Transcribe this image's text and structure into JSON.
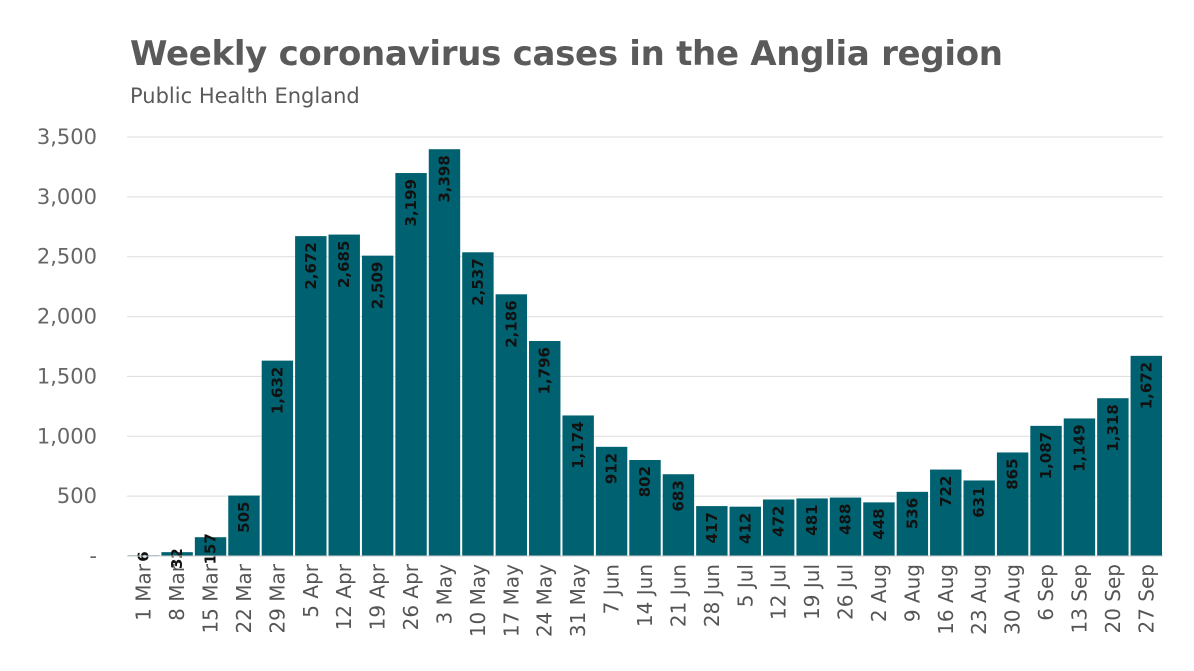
{
  "header": {
    "title": "Weekly coronavirus cases in the Anglia region",
    "subtitle": "Public Health England"
  },
  "chart_data": {
    "type": "bar",
    "title": "Weekly coronavirus cases in the Anglia region",
    "subtitle": "Public Health England",
    "xlabel": "",
    "ylabel": "",
    "ylim": [
      0,
      3500
    ],
    "yticks": [
      0,
      500,
      1000,
      1500,
      2000,
      2500,
      3000,
      3500
    ],
    "ytick_labels": [
      "-",
      "500",
      "1,000",
      "1,500",
      "2,000",
      "2,500",
      "3,000",
      "3,500"
    ],
    "grid": true,
    "bar_color": "#006271",
    "categories": [
      "1 Mar",
      "8 Mar",
      "15 Mar",
      "22 Mar",
      "29 Mar",
      "5 Apr",
      "12 Apr",
      "19 Apr",
      "26 Apr",
      "3 May",
      "10 May",
      "17 May",
      "24 May",
      "31 May",
      "7 Jun",
      "14 Jun",
      "21 Jun",
      "28 Jun",
      "5 Jul",
      "12 Jul",
      "19 Jul",
      "26 Jul",
      "2 Aug",
      "9 Aug",
      "16 Aug",
      "23 Aug",
      "30 Aug",
      "6 Sep",
      "13 Sep",
      "20 Sep",
      "27 Sep"
    ],
    "values": [
      6,
      32,
      157,
      505,
      1632,
      2672,
      2685,
      2509,
      3199,
      3398,
      2537,
      2186,
      1796,
      1174,
      912,
      802,
      683,
      417,
      412,
      472,
      481,
      488,
      448,
      536,
      722,
      631,
      865,
      1087,
      1149,
      1318,
      1672
    ],
    "value_labels": [
      "6",
      "32",
      "157",
      "505",
      "1,632",
      "2,672",
      "2,685",
      "2,509",
      "3,199",
      "3,398",
      "2,537",
      "2,186",
      "1,796",
      "1,174",
      "912",
      "802",
      "683",
      "417",
      "412",
      "472",
      "481",
      "488",
      "448",
      "536",
      "722",
      "631",
      "865",
      "1,087",
      "1,149",
      "1,318",
      "1,672"
    ]
  }
}
